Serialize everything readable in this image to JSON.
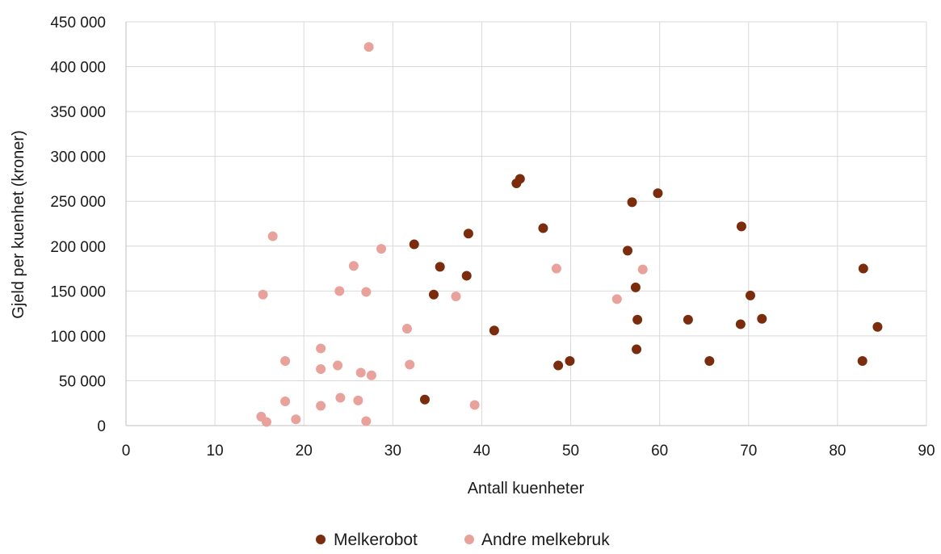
{
  "chart_data": {
    "type": "scatter",
    "title": "",
    "xlabel": "Antall kuenheter",
    "ylabel": "Gjeld per kuenhet (kroner)",
    "xlim": [
      0,
      90
    ],
    "ylim": [
      0,
      450000
    ],
    "x_ticks": [
      0,
      10,
      20,
      30,
      40,
      50,
      60,
      70,
      80,
      90
    ],
    "y_ticks": [
      0,
      50000,
      100000,
      150000,
      200000,
      250000,
      300000,
      350000,
      400000,
      450000
    ],
    "x_tick_labels": [
      "0",
      "10",
      "20",
      "30",
      "40",
      "50",
      "60",
      "70",
      "80",
      "90"
    ],
    "y_tick_labels": [
      "0",
      "50 000",
      "100 000",
      "150 000",
      "200 000",
      "250 000",
      "300 000",
      "350 000",
      "400 000",
      "450 000"
    ],
    "grid": true,
    "legend_position": "bottom",
    "series": [
      {
        "name": "Melkerobot",
        "color": "#7b2c0c",
        "points": [
          [
            32.4,
            202000
          ],
          [
            33.6,
            29000
          ],
          [
            34.6,
            146000
          ],
          [
            35.3,
            177000
          ],
          [
            38.3,
            167000
          ],
          [
            38.5,
            214000
          ],
          [
            41.4,
            106000
          ],
          [
            43.9,
            270000
          ],
          [
            44.3,
            275000
          ],
          [
            46.9,
            220000
          ],
          [
            48.6,
            67000
          ],
          [
            49.9,
            72000
          ],
          [
            56.4,
            195000
          ],
          [
            56.9,
            249000
          ],
          [
            57.3,
            154000
          ],
          [
            57.4,
            85000
          ],
          [
            57.5,
            118000
          ],
          [
            59.8,
            259000
          ],
          [
            63.2,
            118000
          ],
          [
            65.6,
            72000
          ],
          [
            69.1,
            113000
          ],
          [
            69.2,
            222000
          ],
          [
            70.2,
            145000
          ],
          [
            71.5,
            119000
          ],
          [
            82.8,
            72000
          ],
          [
            82.9,
            175000
          ],
          [
            84.5,
            110000
          ]
        ]
      },
      {
        "name": "Andre melkebruk",
        "color": "#e8a19b",
        "points": [
          [
            15.2,
            10000
          ],
          [
            15.4,
            146000
          ],
          [
            15.8,
            4000
          ],
          [
            16.5,
            211000
          ],
          [
            17.9,
            72000
          ],
          [
            17.9,
            27000
          ],
          [
            19.1,
            7000
          ],
          [
            21.9,
            86000
          ],
          [
            21.9,
            63000
          ],
          [
            21.9,
            22000
          ],
          [
            23.8,
            67000
          ],
          [
            24.0,
            150000
          ],
          [
            24.1,
            31000
          ],
          [
            25.6,
            178000
          ],
          [
            26.1,
            28000
          ],
          [
            26.4,
            59000
          ],
          [
            27.0,
            149000
          ],
          [
            27.0,
            5000
          ],
          [
            27.3,
            422000
          ],
          [
            27.6,
            56000
          ],
          [
            28.7,
            197000
          ],
          [
            31.6,
            108000
          ],
          [
            31.9,
            68000
          ],
          [
            37.1,
            144000
          ],
          [
            39.2,
            23000
          ],
          [
            48.4,
            175000
          ],
          [
            55.2,
            141000
          ],
          [
            58.1,
            174000
          ]
        ]
      }
    ]
  }
}
